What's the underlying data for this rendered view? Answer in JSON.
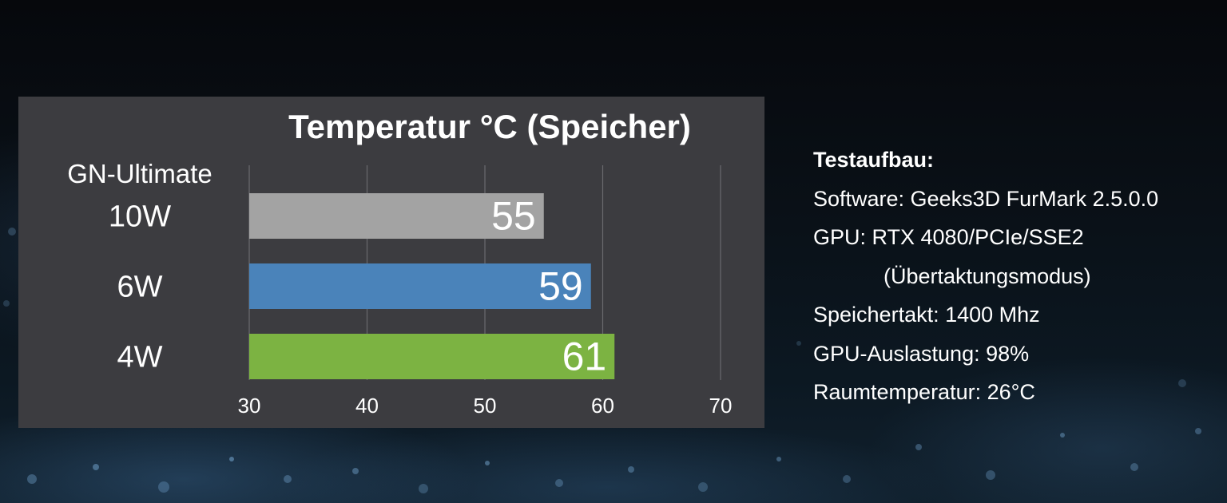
{
  "chart_data": {
    "type": "bar",
    "orientation": "horizontal",
    "title": "Temperatur °C (Speicher)",
    "group_label": "GN-Ultimate",
    "categories": [
      "10W",
      "6W",
      "4W"
    ],
    "values": [
      55,
      59,
      61
    ],
    "data_labels": [
      "55",
      "59",
      "61"
    ],
    "bar_colors": [
      "#a3a3a3",
      "#4a83ba",
      "#7cb342"
    ],
    "xlim": [
      30,
      70
    ],
    "xticks": [
      30,
      40,
      50,
      60,
      70
    ],
    "xtick_labels": [
      "30",
      "40",
      "50",
      "60",
      "70"
    ],
    "grid": true,
    "xlabel": "",
    "ylabel": ""
  },
  "info": {
    "heading": "Testaufbau:",
    "lines": [
      "Software: Geeks3D FurMark 2.5.0.0",
      "GPU: RTX 4080/PCIe/SSE2",
      "(Übertaktungsmodus)",
      "Speichertakt: 1400 Mhz",
      "GPU-Auslastung: 98%",
      "Raumtemperatur: 26°C"
    ]
  },
  "colors": {
    "panel": "#3c3c40",
    "gridline": "#6a6a6e",
    "text": "#ffffff"
  }
}
